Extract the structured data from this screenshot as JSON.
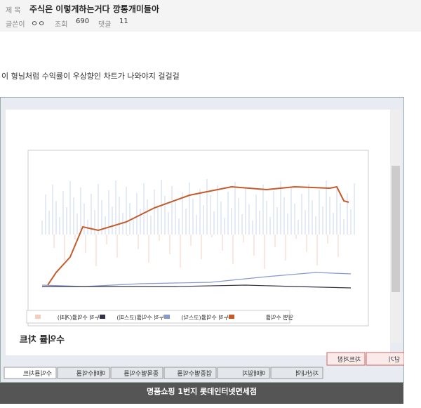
{
  "header": {
    "title_label": "제 목",
    "title": "주식은 이렇게하는거다 깡통개미들아",
    "author_label": "글쓴이",
    "author": "ㅇㅇ",
    "views_label": "조회",
    "views": 690,
    "comments_label": "댓글",
    "comments": 11
  },
  "body": {
    "text": "이 형님처럼 수익률이 우상향인 차트가 나와야지 걸걸걸"
  },
  "image": {
    "panel_title": "수익률 차트",
    "legend": [
      "누적 수익률(계좌)",
      "누적 수익률(코스피)",
      "누적 수익률(코스닥)",
      "일별 수익률"
    ],
    "buttons": [
      "차트저장",
      "닫기"
    ],
    "tabs": [
      "수익률차트",
      "매매수익률",
      "종목별수익률",
      "업종별수익률",
      "매매일지",
      "자산내역"
    ]
  },
  "banner": {
    "text": "명품쇼핑 1번지 롯데인터넷면세점"
  }
}
